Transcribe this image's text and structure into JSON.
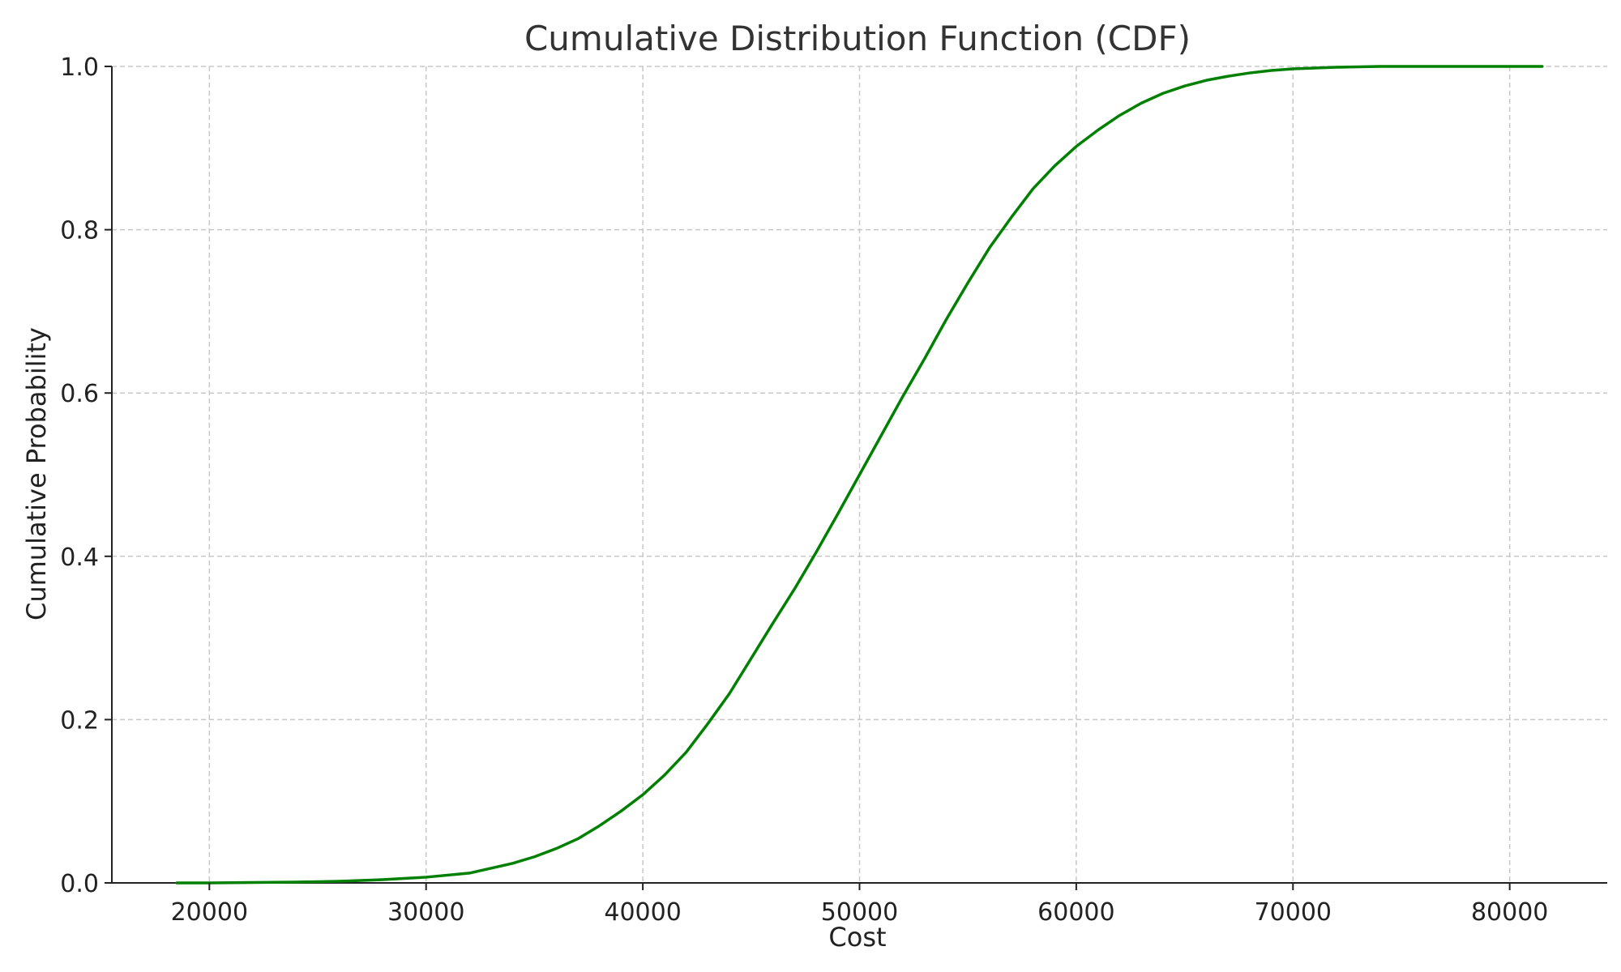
{
  "chart_data": {
    "type": "line",
    "title": "Cumulative Distribution Function (CDF)",
    "xlabel": "Cost",
    "ylabel": "Cumulative Probability",
    "xlim": [
      15500,
      84500
    ],
    "ylim": [
      0,
      1
    ],
    "xticks": [
      20000,
      30000,
      40000,
      50000,
      60000,
      70000,
      80000
    ],
    "xtick_labels": [
      "20000",
      "30000",
      "40000",
      "50000",
      "60000",
      "70000",
      "80000"
    ],
    "yticks": [
      0,
      0.2,
      0.4,
      0.6,
      0.8,
      1.0
    ],
    "ytick_labels": [
      "0.0",
      "0.2",
      "0.4",
      "0.6",
      "0.8",
      "1.0"
    ],
    "grid": true,
    "series": [
      {
        "color": "#008000",
        "x": [
          18500,
          20000,
          22000,
          24000,
          26000,
          28000,
          30000,
          32000,
          34000,
          35000,
          36000,
          37000,
          38000,
          39000,
          40000,
          41000,
          42000,
          43000,
          44000,
          45000,
          46000,
          47000,
          48000,
          49000,
          50000,
          51000,
          52000,
          53000,
          54000,
          55000,
          56000,
          57000,
          58000,
          59000,
          60000,
          61000,
          62000,
          63000,
          64000,
          65000,
          66000,
          67000,
          68000,
          69000,
          70000,
          72000,
          74000,
          76000,
          78000,
          80000,
          81500
        ],
        "y": [
          0.0,
          0.0,
          0.0005,
          0.001,
          0.002,
          0.004,
          0.007,
          0.012,
          0.024,
          0.032,
          0.042,
          0.054,
          0.07,
          0.088,
          0.108,
          0.132,
          0.16,
          0.195,
          0.232,
          0.275,
          0.318,
          0.36,
          0.405,
          0.452,
          0.5,
          0.548,
          0.596,
          0.642,
          0.69,
          0.735,
          0.778,
          0.815,
          0.85,
          0.878,
          0.902,
          0.922,
          0.94,
          0.955,
          0.967,
          0.976,
          0.983,
          0.988,
          0.992,
          0.995,
          0.997,
          0.999,
          1.0,
          1.0,
          1.0,
          1.0,
          1.0
        ]
      }
    ]
  }
}
